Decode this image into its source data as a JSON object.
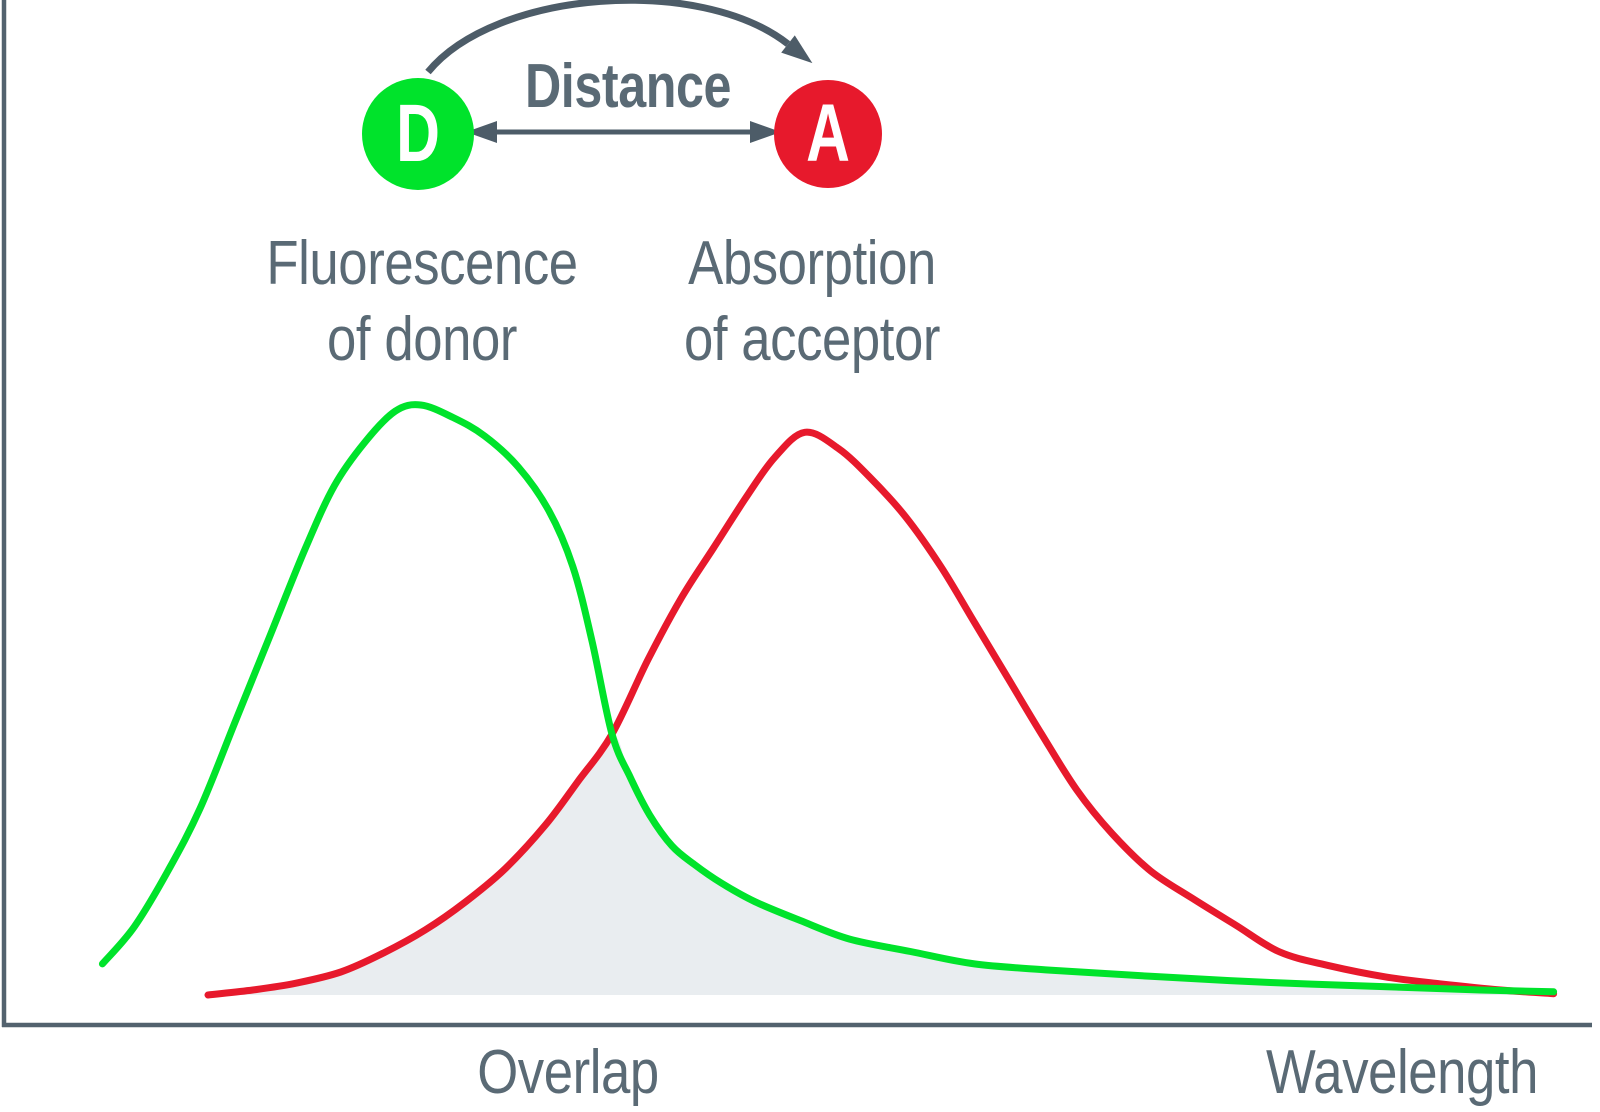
{
  "figure": {
    "distance_label": "Distance",
    "donor": {
      "symbol": "D",
      "caption_line1": "Fluorescence",
      "caption_line2": "of donor"
    },
    "acceptor": {
      "symbol": "A",
      "caption_line1": "Absorption",
      "caption_line2": "of acceptor"
    }
  },
  "axis_labels": {
    "overlap": "Overlap",
    "x": "Wavelength"
  },
  "colors": {
    "donor_green": "#00e32b",
    "acceptor_red": "#e7192c",
    "overlap_fill": "#e9edf0",
    "axis": "#53626e",
    "arrow": "#4d5c68",
    "text": "#5a6a75",
    "symbol_text": "#ffffff"
  },
  "chart_data": {
    "type": "area",
    "title": "",
    "xlabel": "Wavelength",
    "ylabel": "",
    "x_units": "relative wavelength, unlabeled axis (0-100)",
    "ylim": [
      0,
      1
    ],
    "grid": false,
    "legend_position": "none",
    "annotations": [
      "Overlap",
      "Fluorescence of donor",
      "Absorption of acceptor",
      "Distance"
    ],
    "series": [
      {
        "name": "Fluorescence of donor",
        "color": "#00e32b",
        "peak_x": 26.3,
        "peak_y": 1.0,
        "points": [
          [
            6.4,
            0.1
          ],
          [
            8.4,
            0.16
          ],
          [
            10.5,
            0.25
          ],
          [
            12.5,
            0.35
          ],
          [
            14.7,
            0.49
          ],
          [
            16.9,
            0.63
          ],
          [
            19.1,
            0.77
          ],
          [
            20.9,
            0.87
          ],
          [
            22.8,
            0.94
          ],
          [
            24.7,
            0.99
          ],
          [
            26.3,
            1.0
          ],
          [
            28.3,
            0.98
          ],
          [
            30.3,
            0.95
          ],
          [
            32.4,
            0.9
          ],
          [
            34.3,
            0.83
          ],
          [
            35.8,
            0.74
          ],
          [
            37.0,
            0.62
          ],
          [
            38.25,
            0.47
          ],
          [
            39.4,
            0.4
          ],
          [
            40.6,
            0.34
          ],
          [
            42.0,
            0.29
          ],
          [
            43.4,
            0.26
          ],
          [
            45.1,
            0.23
          ],
          [
            47.2,
            0.2
          ],
          [
            50.0,
            0.17
          ],
          [
            53.1,
            0.14
          ],
          [
            56.9,
            0.12
          ],
          [
            60.9,
            0.1
          ],
          [
            65.6,
            0.09
          ],
          [
            71.9,
            0.08
          ],
          [
            79.4,
            0.07
          ],
          [
            86.9,
            0.063
          ],
          [
            92.5,
            0.058
          ],
          [
            97.1,
            0.055
          ]
        ]
      },
      {
        "name": "Absorption of acceptor",
        "color": "#e7192c",
        "peak_x": 50.3,
        "peak_y": 0.956,
        "points": [
          [
            13.0,
            0.05
          ],
          [
            15.8,
            0.058
          ],
          [
            18.5,
            0.069
          ],
          [
            21.3,
            0.087
          ],
          [
            24.0,
            0.118
          ],
          [
            26.6,
            0.155
          ],
          [
            29.1,
            0.2
          ],
          [
            31.6,
            0.254
          ],
          [
            34.1,
            0.324
          ],
          [
            36.1,
            0.393
          ],
          [
            38.25,
            0.47
          ],
          [
            40.5,
            0.59
          ],
          [
            42.6,
            0.69
          ],
          [
            44.6,
            0.77
          ],
          [
            46.6,
            0.85
          ],
          [
            48.4,
            0.915
          ],
          [
            50.3,
            0.956
          ],
          [
            52.4,
            0.93
          ],
          [
            54.5,
            0.88
          ],
          [
            56.6,
            0.82
          ],
          [
            58.8,
            0.74
          ],
          [
            60.9,
            0.65
          ],
          [
            63.0,
            0.56
          ],
          [
            65.1,
            0.47
          ],
          [
            67.3,
            0.38
          ],
          [
            69.5,
            0.31
          ],
          [
            71.9,
            0.25
          ],
          [
            74.5,
            0.206
          ],
          [
            77.2,
            0.163
          ],
          [
            80.0,
            0.119
          ],
          [
            83.1,
            0.097
          ],
          [
            86.6,
            0.079
          ],
          [
            90.0,
            0.068
          ],
          [
            93.8,
            0.058
          ],
          [
            97.1,
            0.052
          ]
        ]
      }
    ],
    "overlap_region": {
      "fill": "#e9edf0",
      "description": "shaded area under the minimum of the two spectra (spectral overlap)",
      "crossing_x": 38.25,
      "crossing_y": 0.47,
      "baseline_y": 0.05
    }
  }
}
